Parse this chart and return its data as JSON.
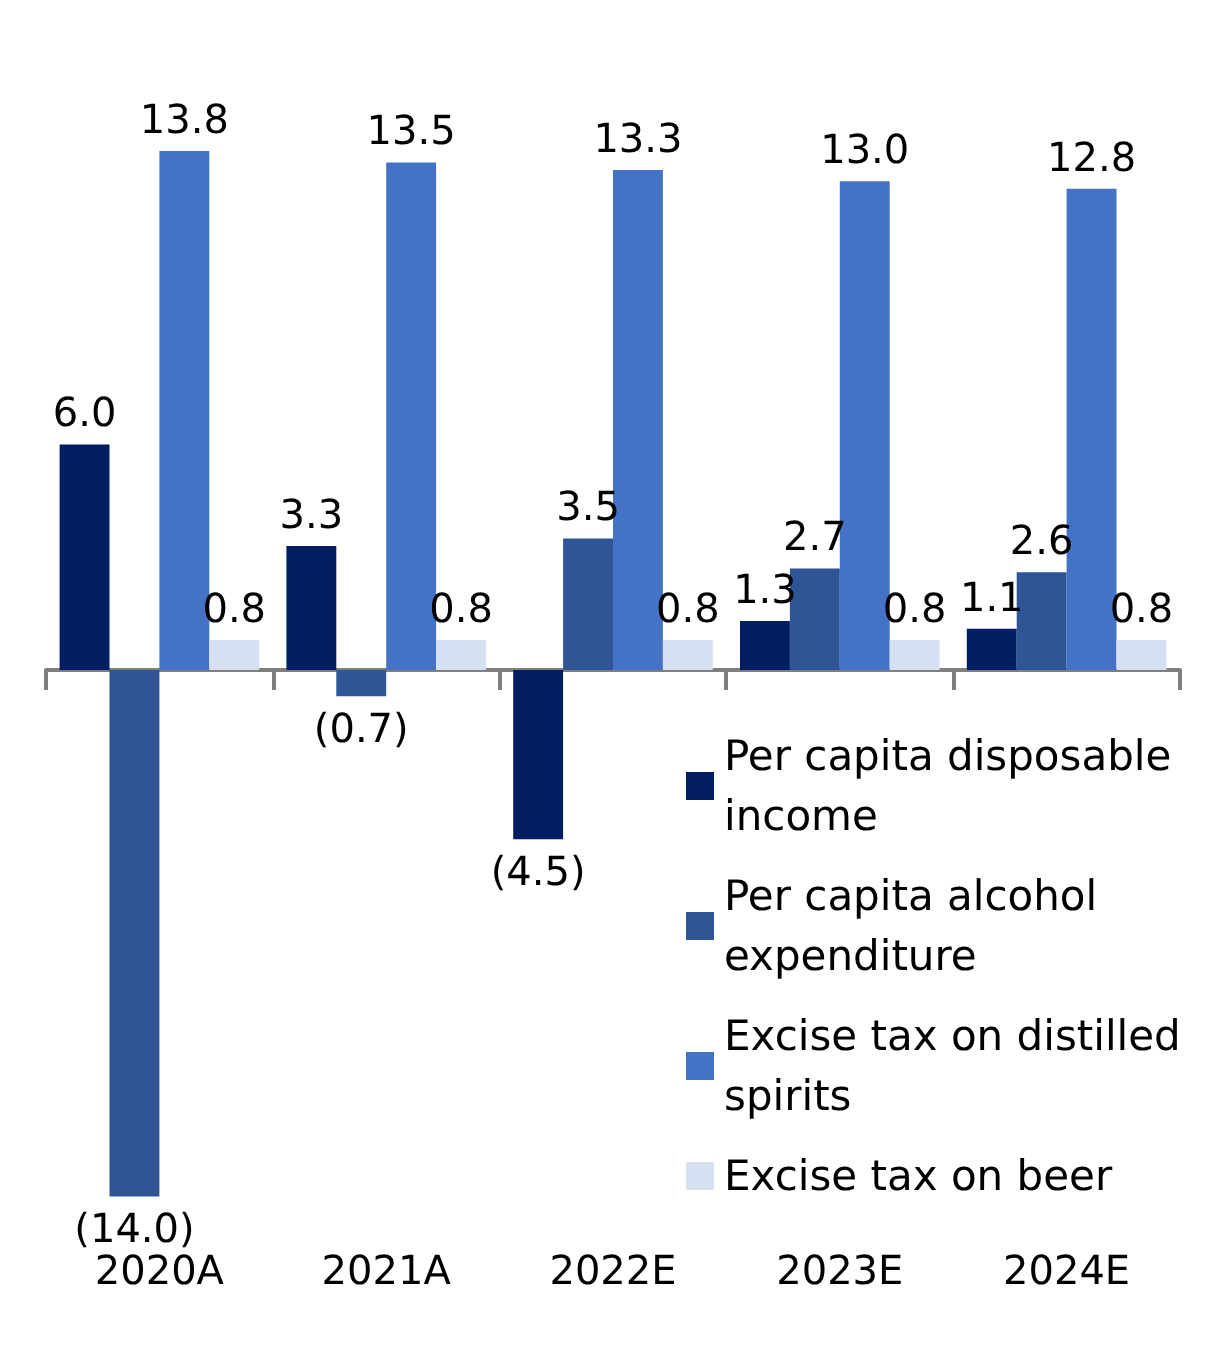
{
  "chart_data": {
    "type": "bar",
    "categories": [
      "2020A",
      "2021A",
      "2022E",
      "2023E",
      "2024E"
    ],
    "series": [
      {
        "name": "Per capita disposable income",
        "color": "#001e60",
        "values": [
          6.0,
          3.3,
          -4.5,
          1.3,
          1.1
        ],
        "value_labels": [
          "6.0",
          "3.3",
          "(4.5)",
          "1.3",
          "1.1"
        ]
      },
      {
        "name": "Per capita alcohol expenditure",
        "color": "#2f5597",
        "values": [
          -14.0,
          -0.7,
          3.5,
          2.7,
          2.6
        ],
        "value_labels": [
          "(14.0)",
          "(0.7)",
          "3.5",
          "2.7",
          "2.6"
        ]
      },
      {
        "name": "Excise tax on distilled spirits",
        "color": "#4472c4",
        "values": [
          13.8,
          13.5,
          13.3,
          13.0,
          12.8
        ],
        "value_labels": [
          "13.8",
          "13.5",
          "13.3",
          "13.0",
          "12.8"
        ]
      },
      {
        "name": "Excise tax on beer",
        "color": "#d6e0f3",
        "values": [
          0.8,
          0.8,
          0.8,
          0.8,
          0.8
        ],
        "value_labels": [
          "0.8",
          "0.8",
          "0.8",
          "0.8",
          "0.8"
        ]
      }
    ],
    "legend": "bottom right",
    "grid": false
  }
}
